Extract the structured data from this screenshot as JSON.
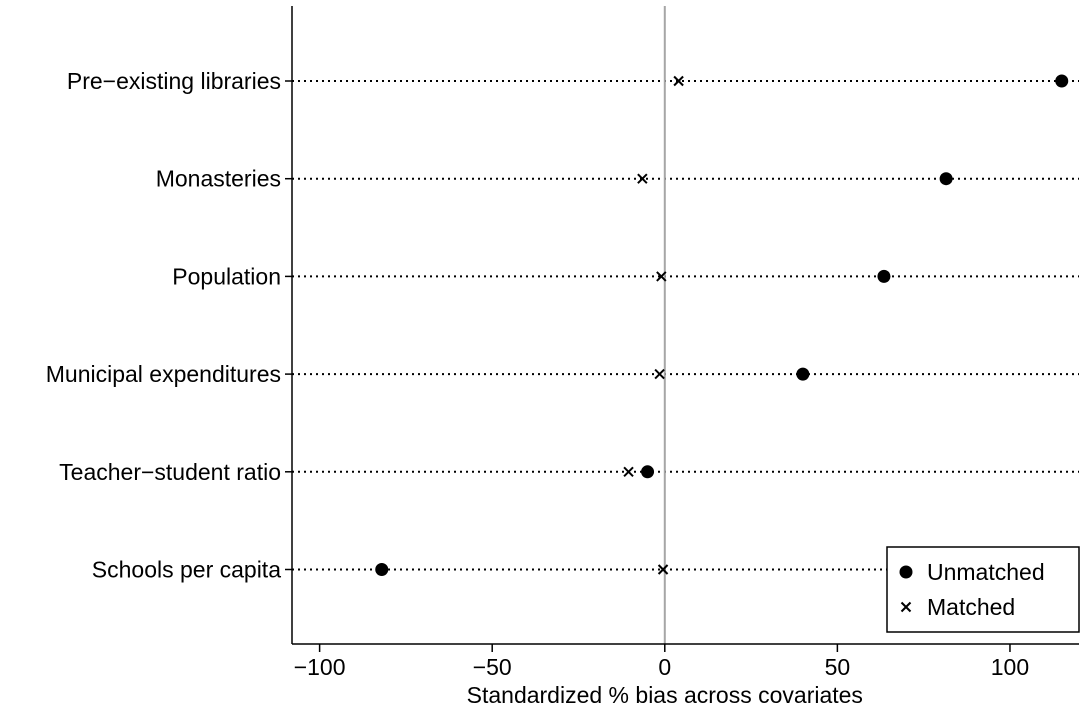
{
  "chart_data": {
    "type": "scatter",
    "title": "",
    "xlabel": "Standardized % bias across covariates",
    "ylabel": "",
    "xlim": [
      -108,
      120
    ],
    "xticks": [
      -100,
      -50,
      0,
      50,
      100
    ],
    "xtick_labels": [
      "−100",
      "−50",
      "0",
      "50",
      "100"
    ],
    "reference_line_x": 0,
    "categories": [
      "Pre−existing libraries",
      "Monasteries",
      "Population",
      "Municipal expenditures",
      "Teacher−student ratio",
      "Schools per capita"
    ],
    "series": [
      {
        "name": "Unmatched",
        "marker": "circle",
        "values": [
          115,
          81.5,
          63.5,
          40,
          -5,
          -82
        ]
      },
      {
        "name": "Matched",
        "marker": "x",
        "values": [
          4,
          -6.5,
          -1,
          -1.5,
          -10.5,
          -0.5
        ]
      }
    ],
    "legend_position": "bottom-right",
    "grid": false,
    "colors": {
      "marker": "#000000",
      "reference_line": "#a6a6a6",
      "dotted_guide": "#000000"
    }
  }
}
